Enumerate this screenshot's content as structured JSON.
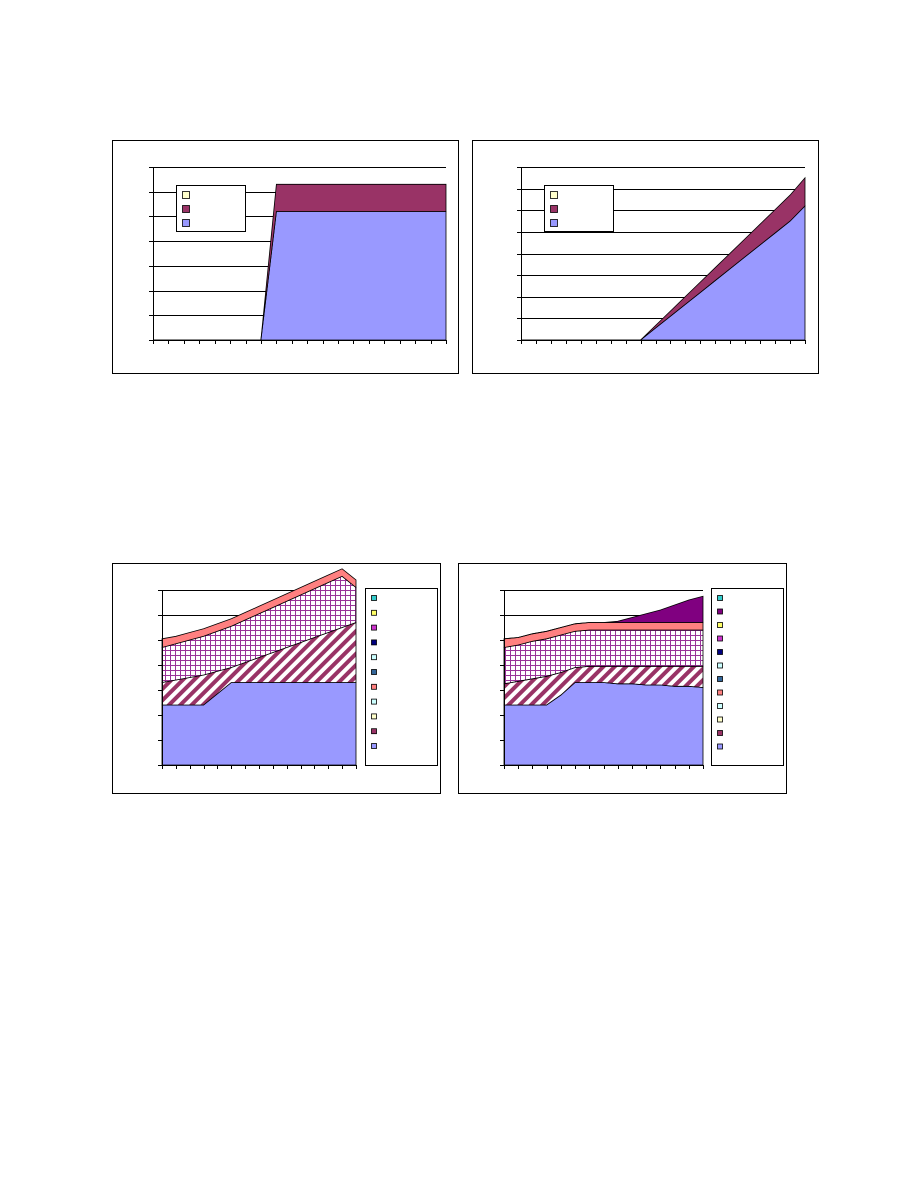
{
  "page": {
    "title": ""
  },
  "colors": {
    "base": "#9999ff",
    "maroon": "#993366",
    "ivory": "#ffffcc",
    "salmon": "#ff8080",
    "purple": "#800080",
    "plum": "#993399",
    "navy": "#000080",
    "teal": "#33cccc",
    "yellow": "#ffff66",
    "magenta": "#cc33cc",
    "blue": "#336699",
    "lightblue": "#ccffff",
    "white": "#ffffff"
  },
  "chart_data": [
    {
      "id": "top-left",
      "type": "area",
      "title": "",
      "xlabel": "",
      "ylabel": "",
      "x_count": 20,
      "ylim": [
        0,
        7
      ],
      "grid": true,
      "y_ticks": 7,
      "legend_position": "top-left",
      "legend": [
        {
          "name": "",
          "color": "#ffffcc"
        },
        {
          "name": "",
          "color": "#993366"
        },
        {
          "name": "",
          "color": "#9999ff"
        }
      ],
      "series": [
        {
          "name": "",
          "color": "#9999ff",
          "pattern": "solid",
          "values": [
            0,
            0,
            0,
            0,
            0,
            0,
            0,
            0,
            5.2,
            5.2,
            5.2,
            5.2,
            5.2,
            5.2,
            5.2,
            5.2,
            5.2,
            5.2,
            5.2,
            5.2
          ]
        },
        {
          "name": "",
          "color": "#993366",
          "pattern": "solid",
          "values": [
            0,
            0,
            0,
            0,
            0,
            0,
            0,
            0,
            1.1,
            1.1,
            1.1,
            1.1,
            1.1,
            1.1,
            1.1,
            1.1,
            1.1,
            1.1,
            1.1,
            1.1
          ]
        }
      ]
    },
    {
      "id": "top-right",
      "type": "area",
      "title": "",
      "xlabel": "",
      "ylabel": "",
      "x_count": 20,
      "ylim": [
        0,
        8
      ],
      "grid": true,
      "y_ticks": 8,
      "legend_position": "top-left",
      "legend": [
        {
          "name": "",
          "color": "#ffffcc"
        },
        {
          "name": "",
          "color": "#993366"
        },
        {
          "name": "",
          "color": "#9999ff"
        }
      ],
      "series": [
        {
          "name": "",
          "color": "#9999ff",
          "pattern": "solid",
          "values": [
            0,
            0,
            0,
            0,
            0,
            0,
            0,
            0,
            0,
            0.55,
            1.1,
            1.65,
            2.2,
            2.75,
            3.3,
            3.85,
            4.4,
            4.95,
            5.5,
            6.2
          ]
        },
        {
          "name": "",
          "color": "#993366",
          "pattern": "solid",
          "values": [
            0,
            0,
            0,
            0,
            0,
            0,
            0,
            0,
            0,
            0.12,
            0.24,
            0.36,
            0.48,
            0.6,
            0.72,
            0.84,
            0.96,
            1.08,
            1.2,
            1.3
          ]
        }
      ]
    },
    {
      "id": "bottom-left",
      "type": "area",
      "title": "",
      "xlabel": "",
      "ylabel": "",
      "x_count": 15,
      "ylim": [
        0,
        7
      ],
      "grid": true,
      "y_ticks": 7,
      "legend_position": "right",
      "legend": [
        {
          "name": "",
          "color": "#33cccc"
        },
        {
          "name": "",
          "color": "#ffff66"
        },
        {
          "name": "",
          "color": "#cc33cc"
        },
        {
          "name": "",
          "color": "#000080"
        },
        {
          "name": "",
          "color": "#ccffff"
        },
        {
          "name": "",
          "color": "#336699"
        },
        {
          "name": "",
          "color": "#ff8080"
        },
        {
          "name": "",
          "color": "#ccffff"
        },
        {
          "name": "",
          "color": "#ffffcc"
        },
        {
          "name": "",
          "color": "#993366"
        },
        {
          "name": "",
          "color": "#9999ff"
        }
      ],
      "series": [
        {
          "name": "",
          "color": "#9999ff",
          "pattern": "solid",
          "values": [
            2.4,
            2.4,
            2.4,
            2.4,
            2.85,
            3.3,
            3.3,
            3.3,
            3.3,
            3.3,
            3.3,
            3.3,
            3.3,
            3.3,
            3.3
          ]
        },
        {
          "name": "",
          "color": "#993366",
          "pattern": "hatch",
          "values": [
            0.9,
            1.0,
            1.1,
            1.2,
            0.9,
            0.6,
            0.8,
            1.0,
            1.2,
            1.4,
            1.6,
            1.8,
            2.0,
            2.2,
            2.4
          ]
        },
        {
          "name": "",
          "color": "#993399",
          "pattern": "grid",
          "values": [
            1.4,
            1.45,
            1.5,
            1.55,
            1.6,
            1.65,
            1.7,
            1.75,
            1.8,
            1.85,
            1.9,
            1.95,
            2.0,
            2.05,
            1.4
          ]
        },
        {
          "name": "",
          "color": "#ff8080",
          "pattern": "solid",
          "values": [
            0.35,
            0.3,
            0.3,
            0.3,
            0.3,
            0.3,
            0.3,
            0.3,
            0.3,
            0.3,
            0.3,
            0.3,
            0.3,
            0.3,
            0.3
          ]
        }
      ]
    },
    {
      "id": "bottom-right",
      "type": "area",
      "title": "",
      "xlabel": "",
      "ylabel": "",
      "x_count": 15,
      "ylim": [
        0,
        7
      ],
      "grid": true,
      "y_ticks": 7,
      "legend_position": "right",
      "legend": [
        {
          "name": "",
          "color": "#33cccc"
        },
        {
          "name": "",
          "color": "#800080"
        },
        {
          "name": "",
          "color": "#ffff66"
        },
        {
          "name": "",
          "color": "#cc33cc"
        },
        {
          "name": "",
          "color": "#000080"
        },
        {
          "name": "",
          "color": "#ccffff"
        },
        {
          "name": "",
          "color": "#336699"
        },
        {
          "name": "",
          "color": "#ff8080"
        },
        {
          "name": "",
          "color": "#ccffff"
        },
        {
          "name": "",
          "color": "#ffffcc"
        },
        {
          "name": "",
          "color": "#993366"
        },
        {
          "name": "",
          "color": "#9999ff"
        }
      ],
      "series": [
        {
          "name": "",
          "color": "#9999ff",
          "pattern": "solid",
          "values": [
            2.4,
            2.4,
            2.4,
            2.4,
            2.8,
            3.3,
            3.3,
            3.3,
            3.25,
            3.25,
            3.2,
            3.2,
            3.15,
            3.15,
            3.1
          ]
        },
        {
          "name": "",
          "color": "#993366",
          "pattern": "hatch",
          "values": [
            0.85,
            0.95,
            1.05,
            1.15,
            0.9,
            0.6,
            0.65,
            0.65,
            0.7,
            0.7,
            0.75,
            0.75,
            0.8,
            0.8,
            0.85
          ]
        },
        {
          "name": "",
          "color": "#993399",
          "pattern": "grid",
          "values": [
            1.45,
            1.45,
            1.5,
            1.5,
            1.5,
            1.45,
            1.45,
            1.45,
            1.45,
            1.45,
            1.45,
            1.45,
            1.45,
            1.45,
            1.45
          ]
        },
        {
          "name": "",
          "color": "#ff8080",
          "pattern": "solid",
          "values": [
            0.35,
            0.3,
            0.3,
            0.3,
            0.3,
            0.3,
            0.3,
            0.3,
            0.3,
            0.3,
            0.3,
            0.3,
            0.3,
            0.3,
            0.3
          ]
        },
        {
          "name": "",
          "color": "#800080",
          "pattern": "solid",
          "values": [
            0,
            0,
            0,
            0,
            0,
            0,
            0,
            0,
            0.05,
            0.2,
            0.35,
            0.5,
            0.7,
            0.9,
            1.05
          ]
        }
      ]
    }
  ]
}
